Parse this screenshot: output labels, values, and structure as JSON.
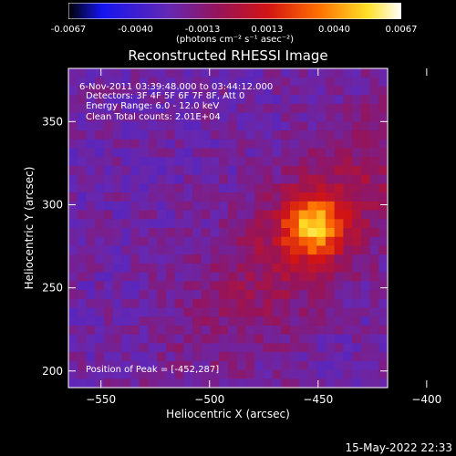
{
  "colorbar": {
    "ticks": [
      "-0.0067",
      "-0.0040",
      "-0.0013",
      "0.0013",
      "0.0040",
      "0.0067"
    ],
    "min": -0.0067,
    "max": 0.0067,
    "units": "(photons cm⁻² s⁻¹ asec⁻²)"
  },
  "chart_data": {
    "type": "heatmap",
    "title": "Reconstructed RHESSI Image",
    "xlabel": "Heliocentric X (arcsec)",
    "ylabel": "Heliocentric Y (arcsec)",
    "xlim": [
      -565,
      -418
    ],
    "ylim": [
      190,
      382
    ],
    "xticks": [
      -550,
      -500,
      -450,
      -400
    ],
    "yticks": [
      200,
      250,
      300,
      350
    ],
    "xtick_labels": [
      "−550",
      "−500",
      "−450",
      "−400"
    ],
    "ytick_labels": [
      "200",
      "250",
      "300",
      "350"
    ],
    "peak": {
      "x": -452,
      "y": 287
    },
    "annotations": [
      "6-Nov-2011 03:39:48.000 to 03:44:12.000",
      "Detectors: 3F 4F 5F 6F 7F 8F, Att 0",
      "Energy Range: 6.0 - 12.0 keV",
      "Clean    Total counts: 2.01E+04"
    ],
    "peak_label": "Position of Peak = [-452,287]"
  },
  "colors": {
    "background": "#000000",
    "text": "#ffffff",
    "low": "#5a3a8c",
    "high": "#ffff80"
  },
  "timestamp": "15-May-2022 22:33"
}
